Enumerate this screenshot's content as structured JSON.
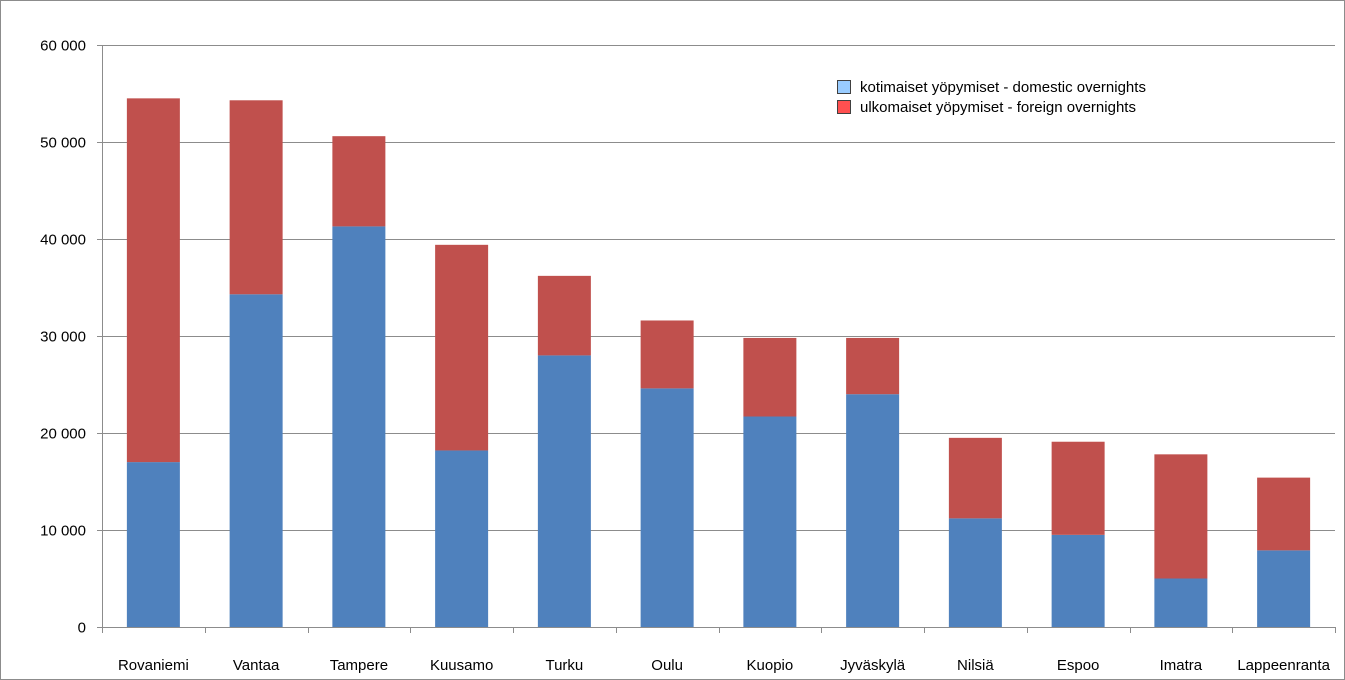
{
  "chart_data": {
    "type": "bar",
    "stacked": true,
    "categories": [
      "Rovaniemi",
      "Vantaa",
      "Tampere",
      "Kuusamo",
      "Turku",
      "Oulu",
      "Kuopio",
      "Jyväskylä",
      "Nilsiä",
      "Espoo",
      "Imatra",
      "Lappeenranta"
    ],
    "series": [
      {
        "name": "kotimaiset yöpymiset - domestic overnights",
        "color": "#4f81bd",
        "legend_color": "#99ccff",
        "values": [
          17000,
          34300,
          41300,
          18200,
          28000,
          24600,
          21700,
          24000,
          11200,
          9500,
          5000,
          7900
        ]
      },
      {
        "name": "ulkomaiset yöpymiset - foreign overnights",
        "color": "#c0504d",
        "legend_color": "#ff5050",
        "values": [
          37500,
          20000,
          9300,
          21200,
          8200,
          7000,
          8100,
          5800,
          8300,
          9600,
          12800,
          7500
        ]
      }
    ],
    "y_ticks": [
      "0",
      "10 000",
      "20 000",
      "30 000",
      "40 000",
      "50 000",
      "60 000"
    ],
    "ylim": [
      0,
      60000
    ],
    "grid": true,
    "legend_position": "top-right"
  }
}
